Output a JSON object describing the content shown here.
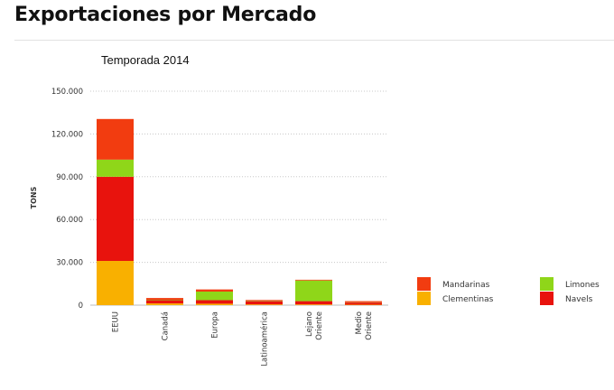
{
  "page": {
    "title": "Exportaciones por Mercado"
  },
  "chart_data": {
    "type": "bar",
    "stacked": true,
    "title": "Temporada 2014",
    "xlabel": "",
    "ylabel": "TONS",
    "ylim": [
      0,
      150000
    ],
    "yticks": [
      0,
      30000,
      60000,
      90000,
      120000,
      150000
    ],
    "ytick_labels": [
      "0",
      "30.000",
      "60.000",
      "90.000",
      "120.000",
      "150.000"
    ],
    "categories": [
      "EEUU",
      "Canadá",
      "Europa",
      "Latinoamérica",
      "Lejano Oriente",
      "Medio Oriente"
    ],
    "category_lines": [
      [
        "EEUU"
      ],
      [
        "Canadá"
      ],
      [
        "Europa"
      ],
      [
        "Latinoamérica"
      ],
      [
        "Lejano",
        "Oriente"
      ],
      [
        "Medio",
        "Oriente"
      ]
    ],
    "series": [
      {
        "name": "Clementinas",
        "color": "#f9b000",
        "values": [
          31000,
          1200,
          1000,
          500,
          500,
          300
        ]
      },
      {
        "name": "Navels",
        "color": "#e8130d",
        "values": [
          59000,
          2300,
          2500,
          2300,
          2300,
          1500
        ]
      },
      {
        "name": "Limones",
        "color": "#8fd619",
        "values": [
          12000,
          300,
          6000,
          300,
          14500,
          200
        ]
      },
      {
        "name": "Mandarinas",
        "color": "#f23c10",
        "values": [
          28500,
          1200,
          1500,
          500,
          500,
          800
        ]
      }
    ],
    "legend": {
      "position": "right",
      "order": [
        "Mandarinas",
        "Limones",
        "Clementinas",
        "Navels"
      ]
    },
    "grid": true
  }
}
